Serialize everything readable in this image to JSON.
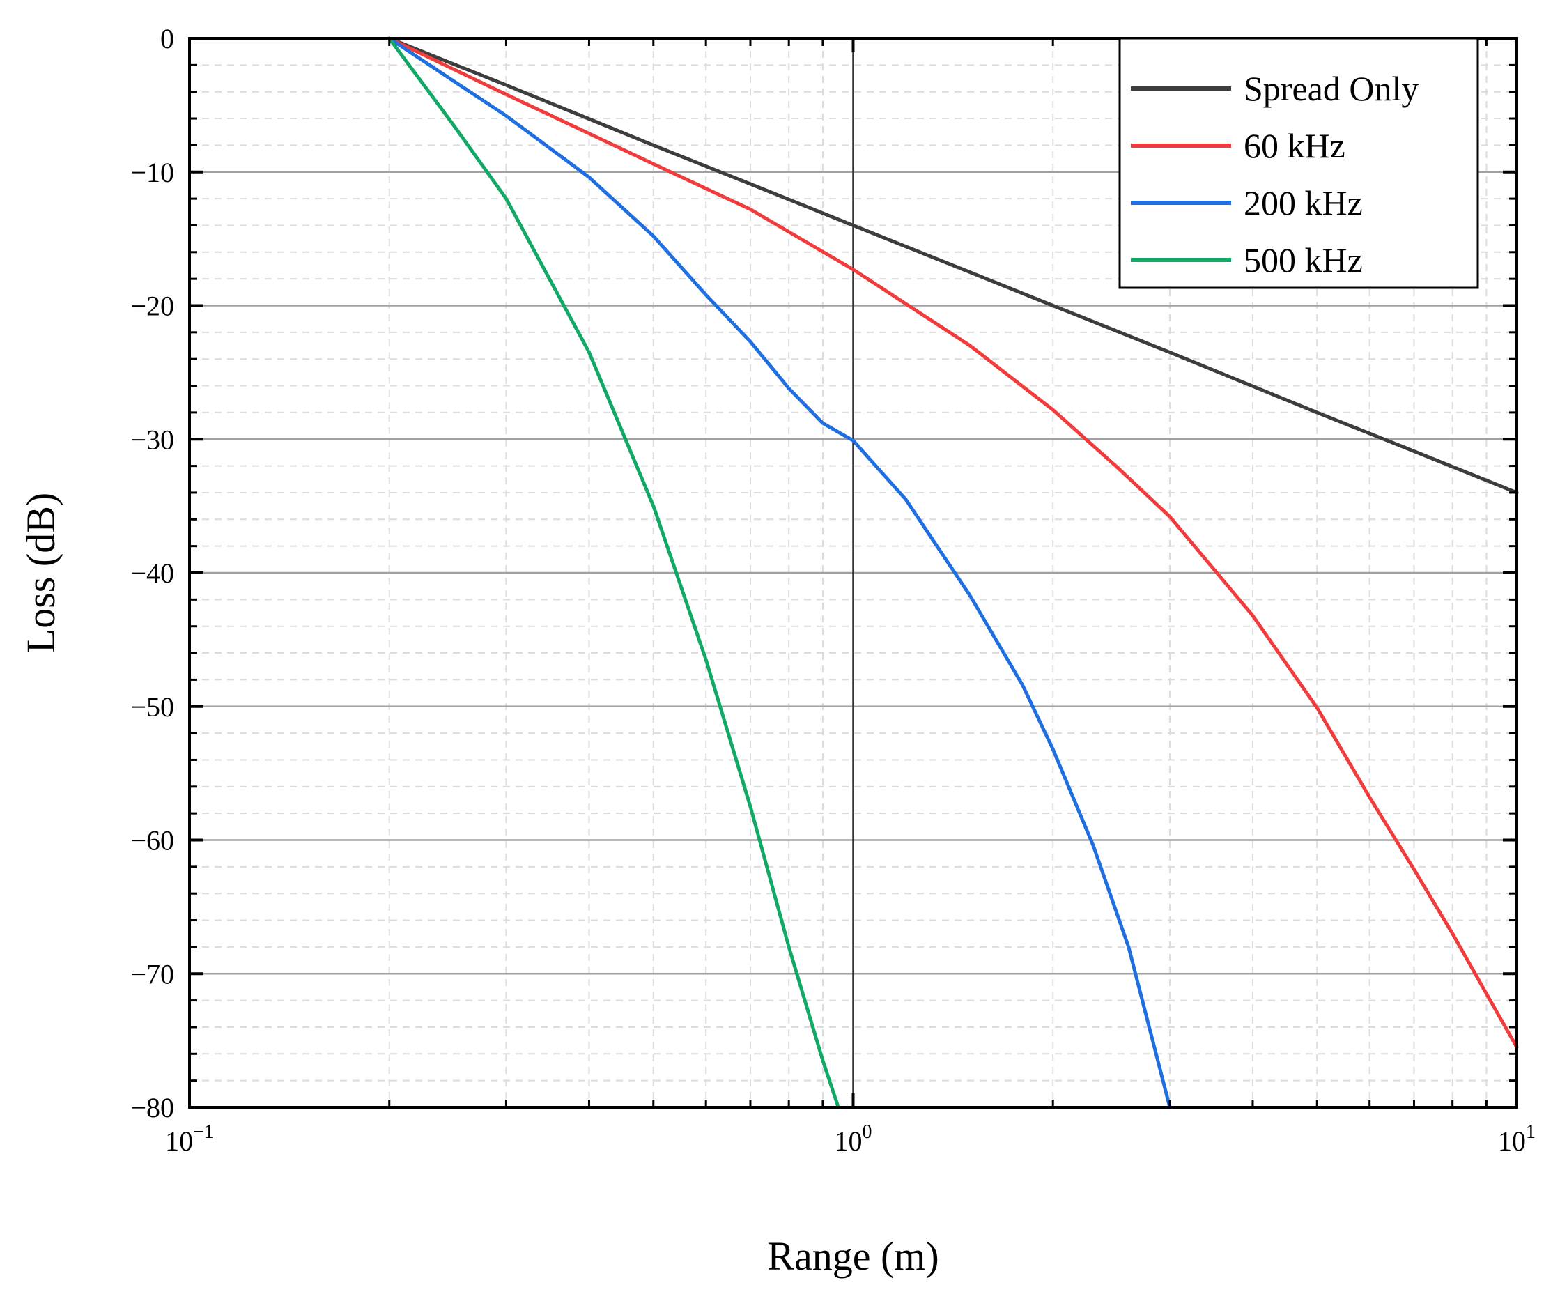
{
  "chart_data": {
    "type": "line",
    "title": "",
    "xlabel": "Range (m)",
    "ylabel": "Loss (dB)",
    "xscale": "log",
    "xlim": [
      0.1,
      10
    ],
    "ylim": [
      -80,
      0
    ],
    "grid": true,
    "legend_position": "top-right",
    "x_ticks": [
      {
        "value": 0.1,
        "base": "10",
        "exp": "−1"
      },
      {
        "value": 1,
        "base": "10",
        "exp": "0"
      },
      {
        "value": 10,
        "base": "10",
        "exp": "1"
      }
    ],
    "y_ticks": [
      {
        "value": 0,
        "label": "0"
      },
      {
        "value": -10,
        "label": "−10"
      },
      {
        "value": -20,
        "label": "−20"
      },
      {
        "value": -30,
        "label": "−30"
      },
      {
        "value": -40,
        "label": "−40"
      },
      {
        "value": -50,
        "label": "−50"
      },
      {
        "value": -60,
        "label": "−60"
      },
      {
        "value": -70,
        "label": "−70"
      },
      {
        "value": -80,
        "label": "−80"
      }
    ],
    "series": [
      {
        "name": "Spread Only",
        "color": "#3d3d3d",
        "x": [
          0.2,
          0.3,
          0.5,
          0.7,
          1.0,
          1.5,
          2.0,
          3.0,
          5.0,
          7.0,
          10.0
        ],
        "y": [
          0,
          -3.5,
          -8.0,
          -10.9,
          -14.0,
          -17.5,
          -20.0,
          -23.5,
          -28.0,
          -30.9,
          -34.0
        ]
      },
      {
        "name": "60 kHz",
        "color": "#f03c3c",
        "x": [
          0.2,
          0.3,
          0.5,
          0.7,
          1.0,
          1.5,
          2.0,
          2.5,
          3.0,
          4.0,
          5.0,
          6.0,
          7.0,
          8.0,
          9.0,
          10.0
        ],
        "y": [
          0,
          -4.2,
          -9.4,
          -12.8,
          -17.3,
          -23.0,
          -27.8,
          -32.1,
          -35.8,
          -43.2,
          -50.1,
          -56.8,
          -62.2,
          -67.0,
          -71.5,
          -75.5
        ]
      },
      {
        "name": "200 kHz",
        "color": "#1f6fe0",
        "x": [
          0.2,
          0.3,
          0.4,
          0.5,
          0.6,
          0.7,
          0.8,
          0.9,
          1.0,
          1.2,
          1.5,
          1.8,
          2.0,
          2.3,
          2.6,
          3.0
        ],
        "y": [
          0,
          -5.8,
          -10.4,
          -14.8,
          -19.2,
          -22.7,
          -26.2,
          -28.8,
          -30.1,
          -34.5,
          -41.7,
          -48.4,
          -53.2,
          -60.4,
          -68.0,
          -80.0
        ]
      },
      {
        "name": "500 kHz",
        "color": "#12a865",
        "x": [
          0.2,
          0.25,
          0.3,
          0.4,
          0.5,
          0.6,
          0.7,
          0.8,
          0.9,
          0.95
        ],
        "y": [
          0,
          -6.5,
          -12.0,
          -23.5,
          -35.0,
          -46.5,
          -57.5,
          -68.0,
          -76.5,
          -80.0
        ]
      }
    ]
  }
}
